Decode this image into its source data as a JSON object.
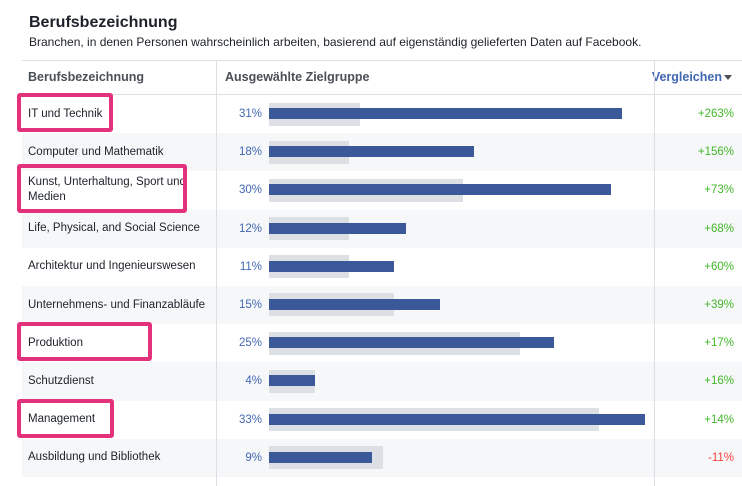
{
  "header": {
    "title": "Berufsbezeichnung",
    "subtitle": "Branchen, in denen Personen wahrscheinlich arbeiten, basierend auf eigenständig gelieferten Daten auf Facebook."
  },
  "columns": {
    "name": "Berufsbezeichnung",
    "audience": "Ausgewählte Zielgruppe",
    "compare": "Vergleichen"
  },
  "colors": {
    "bar": "#3b5998",
    "benchmark": "#dcdfe4",
    "percent_text": "#4267b2",
    "positive": "#42b72a",
    "negative": "#fa3e3e",
    "highlight": "#e4317b"
  },
  "chart_data": {
    "type": "bar",
    "categories": [
      "IT und Technik",
      "Computer und Mathematik",
      "Kunst, Unterhaltung, Sport und Medien",
      "Life, Physical, and Social Science",
      "Architektur und Ingenieurswesen",
      "Unternehmens- und Finanzabläufe",
      "Produktion",
      "Schutzdienst",
      "Management",
      "Ausbildung und Bibliothek"
    ],
    "values": [
      31,
      18,
      30,
      12,
      11,
      15,
      25,
      4,
      33,
      9
    ],
    "value_labels": [
      "31%",
      "18%",
      "30%",
      "12%",
      "11%",
      "15%",
      "25%",
      "4%",
      "33%",
      "9%"
    ],
    "benchmark": [
      8,
      7,
      17,
      7,
      7,
      11,
      22,
      4,
      29,
      10
    ],
    "comparison": [
      "+263%",
      "+156%",
      "+73%",
      "+68%",
      "+60%",
      "+39%",
      "+17%",
      "+16%",
      "+14%",
      "-11%"
    ],
    "highlighted": [
      true,
      false,
      true,
      false,
      false,
      false,
      true,
      false,
      true,
      false
    ],
    "xlim": [
      0,
      33
    ]
  }
}
